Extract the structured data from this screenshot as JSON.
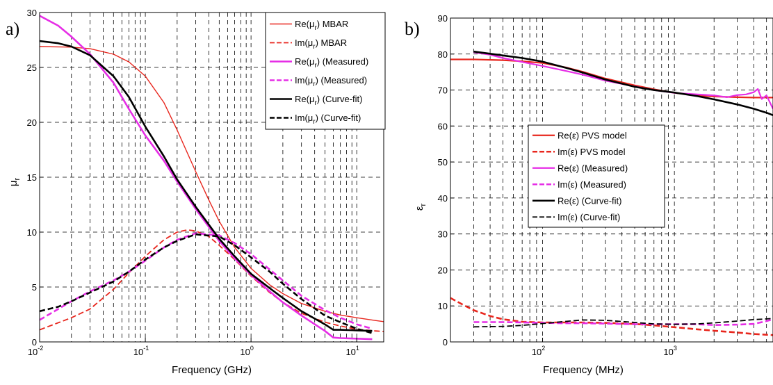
{
  "chart_data": [
    {
      "type": "line",
      "panel": "a)",
      "xlabel": "Frequency (GHz)",
      "ylabel_main": "μ",
      "ylabel_sub": "r",
      "xscale": "log",
      "xlim": [
        0.01,
        18
      ],
      "ylim": [
        0,
        30
      ],
      "yticks": [
        "0",
        "5",
        "10",
        "15",
        "20",
        "25",
        "30"
      ],
      "xticks": [
        {
          "base": "10",
          "exp": "-2",
          "value": 0.01
        },
        {
          "base": "10",
          "exp": "-1",
          "value": 0.1
        },
        {
          "base": "10",
          "exp": "0",
          "value": 1
        },
        {
          "base": "10",
          "exp": "1",
          "value": 10
        }
      ],
      "grid": true,
      "legend_position": "top-right",
      "series": [
        {
          "name": "Re(μr) MBAR",
          "color": "#e8261d",
          "dash": "solid",
          "width": 1.4,
          "x": [
            0.01,
            0.02,
            0.03,
            0.05,
            0.07,
            0.1,
            0.15,
            0.2,
            0.3,
            0.4,
            0.5,
            0.7,
            1,
            1.5,
            2,
            3,
            5,
            7,
            10,
            15,
            18
          ],
          "y": [
            26.9,
            26.85,
            26.7,
            26.2,
            25.5,
            24.2,
            21.8,
            19.3,
            15.5,
            12.9,
            11.0,
            8.6,
            6.7,
            5.2,
            4.4,
            3.5,
            2.8,
            2.45,
            2.2,
            1.95,
            1.85
          ]
        },
        {
          "name": "Im(μr) MBAR",
          "color": "#e8261d",
          "dash": "dashed",
          "width": 1.8,
          "x": [
            0.01,
            0.02,
            0.03,
            0.05,
            0.07,
            0.1,
            0.15,
            0.2,
            0.25,
            0.3,
            0.4,
            0.5,
            0.7,
            1,
            1.5,
            2,
            3,
            5,
            7,
            10,
            15,
            18
          ],
          "y": [
            1.1,
            2.2,
            3.0,
            4.8,
            6.3,
            7.8,
            9.3,
            10.0,
            10.2,
            10.1,
            9.6,
            8.8,
            7.5,
            6.0,
            4.5,
            3.6,
            2.6,
            1.8,
            1.45,
            1.15,
            1.0,
            0.95
          ]
        },
        {
          "name": "Re(μr) (Measured)",
          "color": "#e62ee6",
          "dash": "solid",
          "width": 2.6,
          "x": [
            0.01,
            0.015,
            0.02,
            0.03,
            0.05,
            0.07,
            0.1,
            0.15,
            0.2,
            0.3,
            0.5,
            0.7,
            1,
            1.5,
            2,
            3,
            5,
            6,
            7,
            10,
            14
          ],
          "y": [
            29.7,
            28.8,
            27.8,
            26.2,
            23.6,
            21.2,
            18.8,
            16.5,
            14.6,
            12.1,
            9.2,
            7.6,
            6.1,
            4.6,
            3.6,
            2.4,
            1.0,
            0.4,
            0.35,
            0.3,
            0.25
          ]
        },
        {
          "name": "Im(μr) (Measured)",
          "color": "#e62ee6",
          "dash": "dashed",
          "width": 2.6,
          "x": [
            0.01,
            0.015,
            0.02,
            0.03,
            0.05,
            0.07,
            0.1,
            0.15,
            0.2,
            0.3,
            0.5,
            0.7,
            1,
            1.5,
            2,
            3,
            5,
            7,
            10,
            14
          ],
          "y": [
            2.0,
            3.0,
            3.7,
            4.6,
            5.6,
            6.4,
            7.4,
            8.6,
            9.3,
            9.9,
            9.7,
            9.0,
            8.0,
            6.6,
            5.6,
            4.2,
            2.9,
            2.2,
            1.6,
            1.2
          ]
        },
        {
          "name": "Re(μr) (Curve-fit)",
          "color": "#000000",
          "dash": "solid",
          "width": 2.6,
          "x": [
            0.01,
            0.015,
            0.02,
            0.03,
            0.05,
            0.07,
            0.1,
            0.15,
            0.2,
            0.3,
            0.5,
            0.7,
            1,
            1.5,
            2,
            3,
            5,
            6,
            7,
            10,
            14
          ],
          "y": [
            27.4,
            27.2,
            26.9,
            26.1,
            24.2,
            22.3,
            19.6,
            16.9,
            14.8,
            12.3,
            9.4,
            7.8,
            6.2,
            4.9,
            4.0,
            2.8,
            1.6,
            1.1,
            1.1,
            1.05,
            1.0
          ]
        },
        {
          "name": "Im(μr) (Curve-fit)",
          "color": "#000000",
          "dash": "dashed",
          "width": 2.6,
          "x": [
            0.01,
            0.015,
            0.02,
            0.03,
            0.05,
            0.07,
            0.1,
            0.15,
            0.2,
            0.3,
            0.5,
            0.7,
            1,
            1.5,
            2,
            3,
            5,
            7,
            10,
            14
          ],
          "y": [
            2.8,
            3.2,
            3.7,
            4.5,
            5.5,
            6.4,
            7.5,
            8.6,
            9.2,
            9.8,
            9.6,
            8.8,
            7.7,
            6.4,
            5.3,
            3.9,
            2.4,
            1.8,
            1.2,
            0.8
          ]
        }
      ],
      "legend": [
        {
          "main": "Re(μ",
          "sub": "r",
          "rest": ") MBAR",
          "color": "#e8261d",
          "dash": "solid",
          "width": 1.4
        },
        {
          "main": "Im(μ",
          "sub": "r",
          "rest": ") MBAR",
          "color": "#e8261d",
          "dash": "dashed",
          "width": 1.8
        },
        {
          "main": "Re(μ",
          "sub": "r",
          "rest": ") (Measured)",
          "color": "#e62ee6",
          "dash": "solid",
          "width": 2.6
        },
        {
          "main": "Im(μ",
          "sub": "r",
          "rest": ") (Measured)",
          "color": "#e62ee6",
          "dash": "dashed",
          "width": 2.6
        },
        {
          "main": "Re(μ",
          "sub": "r",
          "rest": ") (Curve-fit)",
          "color": "#000000",
          "dash": "solid",
          "width": 2.6
        },
        {
          "main": "Im(μ",
          "sub": "r",
          "rest": ") (Curve-fit)",
          "color": "#000000",
          "dash": "dashed",
          "width": 2.6
        }
      ]
    },
    {
      "type": "line",
      "panel": "b)",
      "xlabel": "Frequency (MHz)",
      "ylabel_main": "ε",
      "ylabel_sub": "r",
      "xscale": "log",
      "xlim": [
        20,
        5600
      ],
      "ylim": [
        0,
        90
      ],
      "yticks": [
        "0",
        "10",
        "20",
        "30",
        "40",
        "50",
        "60",
        "70",
        "80",
        "90"
      ],
      "xticks": [
        {
          "base": "10",
          "exp": "2",
          "value": 100
        },
        {
          "base": "10",
          "exp": "3",
          "value": 1000
        }
      ],
      "grid": true,
      "legend_position": "center-left",
      "series": [
        {
          "name": "Re(ε) PVS model",
          "color": "#e8261d",
          "dash": "solid",
          "width": 2.2,
          "x": [
            20,
            30,
            50,
            70,
            100,
            150,
            200,
            300,
            500,
            700,
            1000,
            1500,
            2000,
            3000,
            4000,
            5000,
            5600
          ],
          "y": [
            78.5,
            78.5,
            78.3,
            78.0,
            77.5,
            76.3,
            75.1,
            73.2,
            71.3,
            70.2,
            69.2,
            68.5,
            68.2,
            68.0,
            67.9,
            67.9,
            67.9
          ]
        },
        {
          "name": "Im(ε) PVS model",
          "color": "#e8261d",
          "dash": "dashed",
          "width": 2.6,
          "x": [
            20,
            25,
            30,
            40,
            50,
            70,
            100,
            150,
            200,
            300,
            500,
            700,
            1000,
            1500,
            2000,
            3000,
            4000,
            5600
          ],
          "y": [
            12.2,
            10.3,
            8.8,
            7.2,
            6.3,
            5.6,
            5.4,
            5.4,
            5.4,
            5.3,
            5.0,
            4.6,
            4.1,
            3.5,
            3.1,
            2.6,
            2.2,
            1.9
          ]
        },
        {
          "name": "Re(ε) (Measured)",
          "color": "#e62ee6",
          "dash": "solid",
          "width": 2.2,
          "x": [
            30,
            40,
            50,
            70,
            100,
            150,
            200,
            300,
            500,
            700,
            1000,
            1500,
            2000,
            2500,
            3000,
            3500,
            4000,
            4300,
            4600,
            5000,
            5600
          ],
          "y": [
            80.5,
            79.8,
            78.9,
            77.8,
            76.7,
            75.3,
            74.3,
            72.6,
            71.0,
            70.0,
            69.2,
            68.8,
            68.5,
            68.0,
            68.6,
            68.8,
            69.4,
            70.3,
            67.5,
            68.5,
            64.8
          ]
        },
        {
          "name": "Im(ε) (Measured)",
          "color": "#e62ee6",
          "dash": "dashed",
          "width": 2.6,
          "x": [
            30,
            50,
            70,
            100,
            150,
            200,
            300,
            500,
            700,
            1000,
            1500,
            2000,
            3000,
            4000,
            4500,
            5000,
            5600
          ],
          "y": [
            5.5,
            5.5,
            5.4,
            5.3,
            5.2,
            5.2,
            5.1,
            4.9,
            4.9,
            4.9,
            4.9,
            4.7,
            4.8,
            5.0,
            5.4,
            5.8,
            6.3
          ]
        },
        {
          "name": "Re(ε) (Curve-fit)",
          "color": "#000000",
          "dash": "solid",
          "width": 2.6,
          "x": [
            30,
            40,
            50,
            70,
            100,
            150,
            200,
            300,
            500,
            700,
            1000,
            1500,
            2000,
            3000,
            4000,
            5000,
            5600
          ],
          "y": [
            80.7,
            80.1,
            79.6,
            78.9,
            77.9,
            76.2,
            74.9,
            72.9,
            70.9,
            70.0,
            69.3,
            68.3,
            67.4,
            66.0,
            64.8,
            63.7,
            63.0
          ]
        },
        {
          "name": "Im(ε) (Curve-fit)",
          "color": "#000000",
          "dash": "dashed",
          "width": 1.8,
          "x": [
            30,
            50,
            70,
            100,
            150,
            200,
            300,
            500,
            700,
            1000,
            1500,
            2000,
            3000,
            4000,
            5000,
            5600
          ],
          "y": [
            4.2,
            4.3,
            4.6,
            5.1,
            5.7,
            6.1,
            6.0,
            5.4,
            5.0,
            4.9,
            5.0,
            5.3,
            5.8,
            6.2,
            6.4,
            6.5
          ]
        }
      ],
      "legend": [
        {
          "main": "Re(ε) PVS model",
          "sub": "",
          "rest": "",
          "color": "#e8261d",
          "dash": "solid",
          "width": 2.2
        },
        {
          "main": "Im(ε) PVS model",
          "sub": "",
          "rest": "",
          "color": "#e8261d",
          "dash": "dashed",
          "width": 2.6
        },
        {
          "main": "Re(ε) (Measured)",
          "sub": "",
          "rest": "",
          "color": "#e62ee6",
          "dash": "solid",
          "width": 2.2
        },
        {
          "main": "Im(ε) (Measured)",
          "sub": "",
          "rest": "",
          "color": "#e62ee6",
          "dash": "dashed",
          "width": 2.6
        },
        {
          "main": "Re(ε) (Curve-fit)",
          "sub": "",
          "rest": "",
          "color": "#000000",
          "dash": "solid",
          "width": 2.6
        },
        {
          "main": "Im(ε) (Curve-fit)",
          "sub": "",
          "rest": "",
          "color": "#000000",
          "dash": "dashed",
          "width": 1.8
        }
      ]
    }
  ]
}
